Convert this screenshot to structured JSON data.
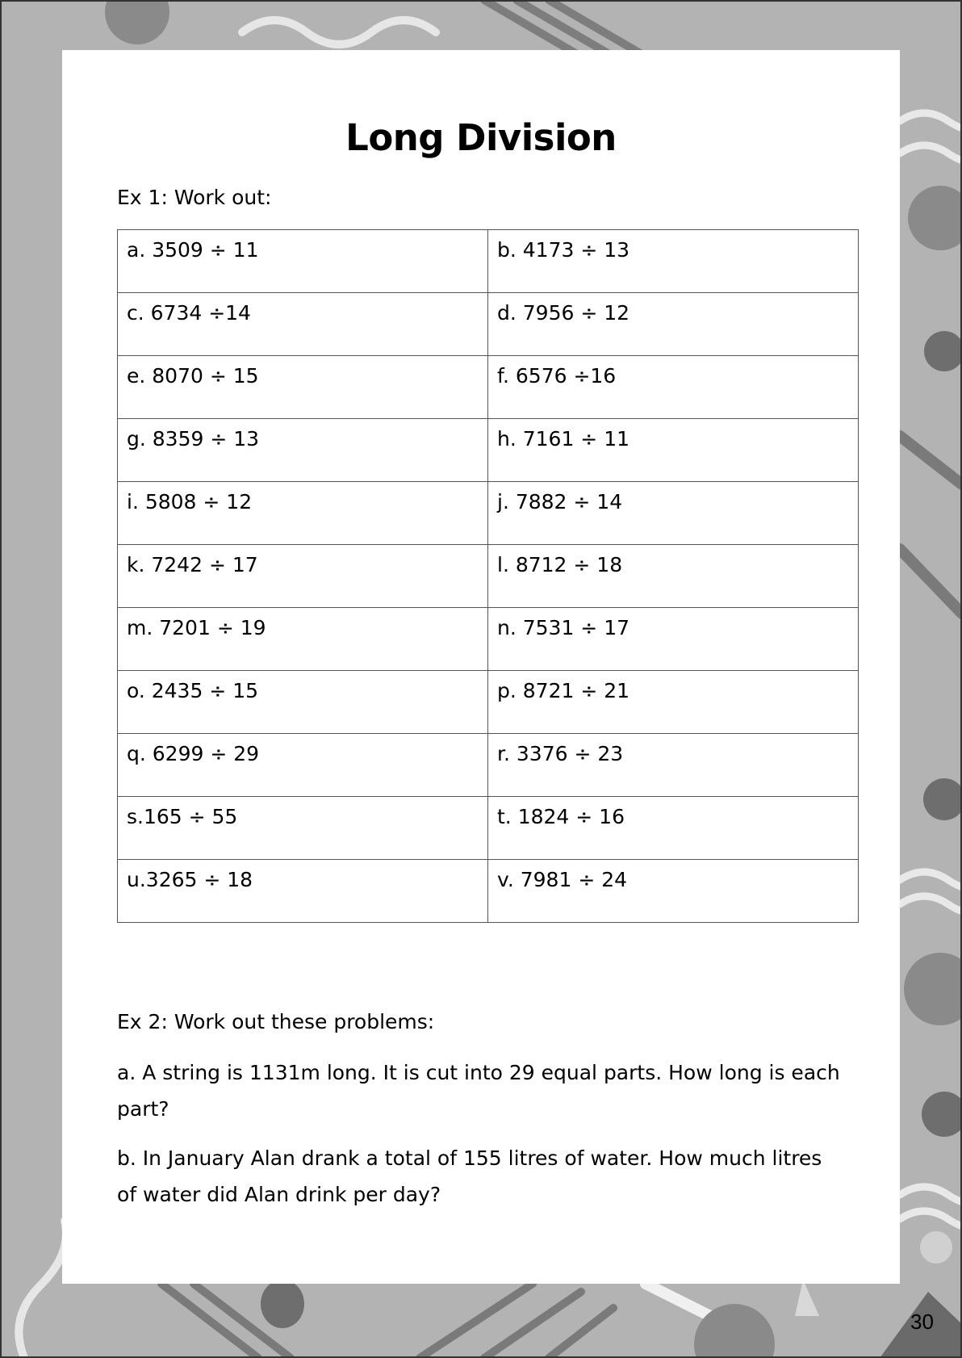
{
  "page": {
    "title": "Long Division",
    "page_number": "30",
    "background_color": "#b3b3b3"
  },
  "ex1": {
    "heading": "Ex 1: Work out:",
    "rows": [
      [
        "a. 3509 ÷ 11",
        "b. 4173 ÷ 13"
      ],
      [
        "c. 6734 ÷14",
        "d. 7956 ÷ 12"
      ],
      [
        "e. 8070 ÷ 15",
        "f. 6576 ÷16"
      ],
      [
        "g. 8359 ÷ 13",
        "h. 7161 ÷ 11"
      ],
      [
        "i. 5808 ÷ 12",
        "j. 7882 ÷ 14"
      ],
      [
        "k. 7242 ÷ 17",
        "l. 8712 ÷ 18"
      ],
      [
        "m. 7201 ÷ 19",
        "n. 7531 ÷ 17"
      ],
      [
        "o. 2435 ÷ 15",
        "p. 8721 ÷ 21"
      ],
      [
        "q. 6299 ÷ 29",
        "r. 3376 ÷ 23"
      ],
      [
        "s.165 ÷ 55",
        "t. 1824 ÷ 16"
      ],
      [
        "u.3265 ÷ 18",
        "v. 7981 ÷ 24"
      ]
    ]
  },
  "ex2": {
    "heading": "Ex 2: Work out these problems:",
    "problems": [
      "a. A string is 1131m long. It is cut into 29 equal parts. How long is each part?",
      "b. In January Alan drank a total of 155 litres of water. How much litres of water did Alan drink per day?"
    ]
  }
}
